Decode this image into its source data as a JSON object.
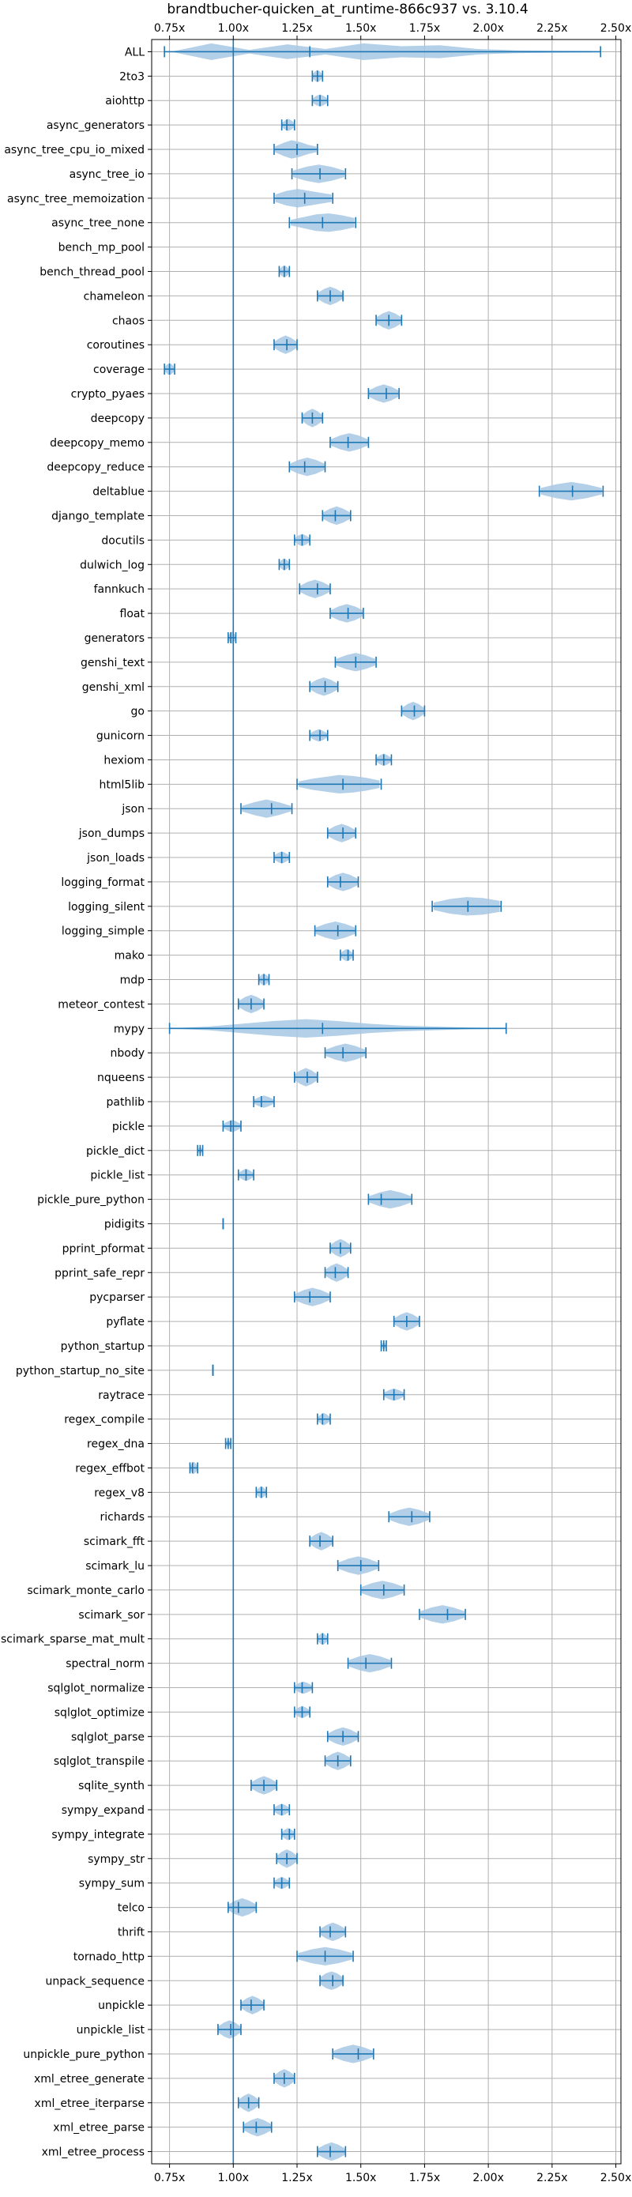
{
  "chart_data": {
    "type": "violin",
    "title": "brandtbucher-quicken_at_runtime-866c937 vs. 3.10.4",
    "xlim": [
      0.68,
      2.52
    ],
    "xticks": [
      "0.75x",
      "1.00x",
      "1.25x",
      "1.50x",
      "1.75x",
      "2.00x",
      "2.25x",
      "2.50x"
    ],
    "xtick_values": [
      0.75,
      1.0,
      1.25,
      1.5,
      1.75,
      2.0,
      2.25,
      2.5
    ],
    "reference_line": 1.0,
    "grid": true,
    "colors": {
      "line": "#1f77b4",
      "fill": "#a6c8e4",
      "grid": "#b0b0b0"
    },
    "categories": [
      "ALL",
      "2to3",
      "aiohttp",
      "async_generators",
      "async_tree_cpu_io_mixed",
      "async_tree_io",
      "async_tree_memoization",
      "async_tree_none",
      "bench_mp_pool",
      "bench_thread_pool",
      "chameleon",
      "chaos",
      "coroutines",
      "coverage",
      "crypto_pyaes",
      "deepcopy",
      "deepcopy_memo",
      "deepcopy_reduce",
      "deltablue",
      "django_template",
      "docutils",
      "dulwich_log",
      "fannkuch",
      "float",
      "generators",
      "genshi_text",
      "genshi_xml",
      "go",
      "gunicorn",
      "hexiom",
      "html5lib",
      "json",
      "json_dumps",
      "json_loads",
      "logging_format",
      "logging_silent",
      "logging_simple",
      "mako",
      "mdp",
      "meteor_contest",
      "mypy",
      "nbody",
      "nqueens",
      "pathlib",
      "pickle",
      "pickle_dict",
      "pickle_list",
      "pickle_pure_python",
      "pidigits",
      "pprint_pformat",
      "pprint_safe_repr",
      "pycparser",
      "pyflate",
      "python_startup",
      "python_startup_no_site",
      "raytrace",
      "regex_compile",
      "regex_dna",
      "regex_effbot",
      "regex_v8",
      "richards",
      "scimark_fft",
      "scimark_lu",
      "scimark_monte_carlo",
      "scimark_sor",
      "scimark_sparse_mat_mult",
      "spectral_norm",
      "sqlglot_normalize",
      "sqlglot_optimize",
      "sqlglot_parse",
      "sqlglot_transpile",
      "sqlite_synth",
      "sympy_expand",
      "sympy_integrate",
      "sympy_str",
      "sympy_sum",
      "telco",
      "thrift",
      "tornado_http",
      "unpack_sequence",
      "unpickle",
      "unpickle_list",
      "unpickle_pure_python",
      "xml_etree_generate",
      "xml_etree_iterparse",
      "xml_etree_parse",
      "xml_etree_process"
    ],
    "stats": [
      [
        0.73,
        1.3,
        2.44
      ],
      [
        1.31,
        1.33,
        1.35
      ],
      [
        1.31,
        1.34,
        1.37
      ],
      [
        1.19,
        1.21,
        1.24
      ],
      [
        1.16,
        1.25,
        1.33
      ],
      [
        1.23,
        1.34,
        1.44
      ],
      [
        1.16,
        1.28,
        1.39
      ],
      [
        1.22,
        1.35,
        1.48
      ],
      [
        null,
        null,
        null
      ],
      [
        1.18,
        1.2,
        1.22
      ],
      [
        1.33,
        1.38,
        1.43
      ],
      [
        1.56,
        1.61,
        1.66
      ],
      [
        1.16,
        1.21,
        1.25
      ],
      [
        0.73,
        0.75,
        0.77
      ],
      [
        1.53,
        1.6,
        1.65
      ],
      [
        1.27,
        1.31,
        1.35
      ],
      [
        1.38,
        1.45,
        1.53
      ],
      [
        1.22,
        1.28,
        1.36
      ],
      [
        2.2,
        2.33,
        2.45
      ],
      [
        1.35,
        1.4,
        1.46
      ],
      [
        1.24,
        1.27,
        1.3
      ],
      [
        1.18,
        1.2,
        1.22
      ],
      [
        1.26,
        1.33,
        1.38
      ],
      [
        1.38,
        1.45,
        1.51
      ],
      [
        0.98,
        0.99,
        1.01
      ],
      [
        1.4,
        1.48,
        1.56
      ],
      [
        1.3,
        1.36,
        1.41
      ],
      [
        1.66,
        1.71,
        1.75
      ],
      [
        1.3,
        1.34,
        1.37
      ],
      [
        1.56,
        1.59,
        1.62
      ],
      [
        1.25,
        1.43,
        1.58
      ],
      [
        1.03,
        1.15,
        1.23
      ],
      [
        1.37,
        1.43,
        1.48
      ],
      [
        1.16,
        1.19,
        1.22
      ],
      [
        1.37,
        1.42,
        1.49
      ],
      [
        1.78,
        1.92,
        2.05
      ],
      [
        1.32,
        1.41,
        1.48
      ],
      [
        1.42,
        1.45,
        1.47
      ],
      [
        1.1,
        1.12,
        1.14
      ],
      [
        1.02,
        1.07,
        1.12
      ],
      [
        0.75,
        1.35,
        2.07
      ],
      [
        1.36,
        1.43,
        1.52
      ],
      [
        1.24,
        1.29,
        1.33
      ],
      [
        1.08,
        1.11,
        1.16
      ],
      [
        0.96,
        0.99,
        1.03
      ],
      [
        0.86,
        0.87,
        0.88
      ],
      [
        1.02,
        1.05,
        1.08
      ],
      [
        1.53,
        1.58,
        1.7
      ],
      [
        0.96,
        0.96,
        0.96
      ],
      [
        1.38,
        1.42,
        1.46
      ],
      [
        1.36,
        1.4,
        1.45
      ],
      [
        1.24,
        1.3,
        1.38
      ],
      [
        1.63,
        1.68,
        1.73
      ],
      [
        1.58,
        1.59,
        1.6
      ],
      [
        0.92,
        0.92,
        0.92
      ],
      [
        1.59,
        1.63,
        1.67
      ],
      [
        1.33,
        1.35,
        1.38
      ],
      [
        0.97,
        0.98,
        0.99
      ],
      [
        0.83,
        0.84,
        0.86
      ],
      [
        1.09,
        1.11,
        1.13
      ],
      [
        1.61,
        1.7,
        1.77
      ],
      [
        1.3,
        1.34,
        1.39
      ],
      [
        1.41,
        1.5,
        1.57
      ],
      [
        1.5,
        1.59,
        1.67
      ],
      [
        1.73,
        1.84,
        1.91
      ],
      [
        1.33,
        1.35,
        1.37
      ],
      [
        1.45,
        1.52,
        1.62
      ],
      [
        1.24,
        1.27,
        1.31
      ],
      [
        1.24,
        1.27,
        1.3
      ],
      [
        1.37,
        1.43,
        1.49
      ],
      [
        1.36,
        1.41,
        1.46
      ],
      [
        1.07,
        1.12,
        1.17
      ],
      [
        1.16,
        1.19,
        1.22
      ],
      [
        1.19,
        1.22,
        1.24
      ],
      [
        1.17,
        1.21,
        1.25
      ],
      [
        1.16,
        1.19,
        1.22
      ],
      [
        0.98,
        1.02,
        1.09
      ],
      [
        1.34,
        1.38,
        1.44
      ],
      [
        1.25,
        1.36,
        1.47
      ],
      [
        1.34,
        1.39,
        1.43
      ],
      [
        1.03,
        1.07,
        1.12
      ],
      [
        0.94,
        0.99,
        1.03
      ],
      [
        1.39,
        1.49,
        1.55
      ],
      [
        1.16,
        1.2,
        1.24
      ],
      [
        1.02,
        1.06,
        1.1
      ],
      [
        1.04,
        1.09,
        1.15
      ],
      [
        1.33,
        1.38,
        1.44
      ]
    ],
    "shape": [
      [
        0.05,
        0.9,
        0.2,
        0.8,
        0.3,
        0.9,
        0.6,
        0.7,
        0.3,
        0.15,
        0.1,
        0.08
      ],
      0,
      0,
      0,
      [
        0.3,
        0.7,
        1,
        0.8,
        0.5,
        0.3
      ],
      0,
      [
        0.4,
        0.8,
        1,
        0.8,
        0.6,
        0.4
      ],
      [
        0.3,
        0.6,
        0.9,
        1,
        0.8,
        0.5
      ],
      0,
      0,
      0,
      0,
      0,
      0,
      0,
      0,
      0,
      0,
      0,
      0,
      0,
      0,
      0,
      0,
      0,
      0,
      0,
      0,
      0,
      0,
      [
        0.3,
        0.6,
        0.8,
        1,
        0.9,
        0.7,
        0.4
      ],
      [
        0.3,
        0.7,
        1,
        0.7,
        0.3
      ],
      0,
      0,
      0,
      [
        0.4,
        0.8,
        1,
        0.9,
        0.6
      ],
      0,
      0,
      0,
      0,
      [
        0.05,
        0.2,
        0.5,
        0.8,
        1,
        0.8,
        0.5,
        0.3,
        0.2,
        0.1,
        0.05
      ],
      0,
      0,
      0,
      0,
      0,
      0,
      0,
      0,
      0,
      0,
      0,
      0,
      0,
      0,
      0,
      0,
      0,
      0,
      0,
      0,
      0,
      0,
      0,
      0,
      0,
      0,
      0,
      0,
      0,
      0,
      0,
      0,
      0,
      0,
      0,
      0,
      0,
      0,
      [
        0.4,
        0.8,
        1,
        0.8,
        0.4
      ],
      0,
      0,
      0,
      0,
      0,
      0,
      0,
      0,
      0
    ]
  }
}
